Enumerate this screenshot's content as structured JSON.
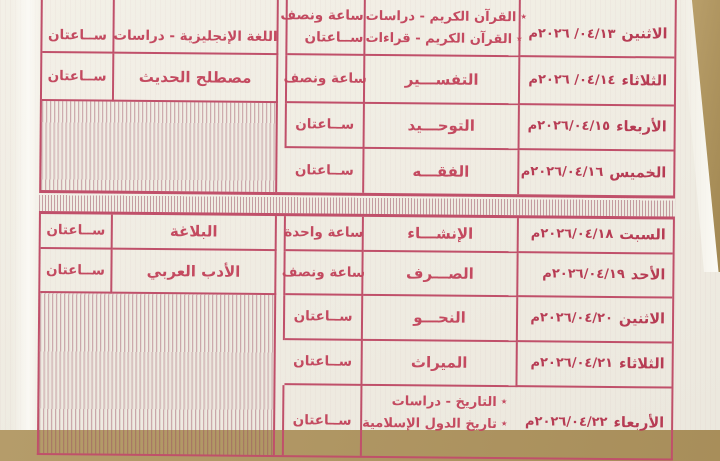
{
  "document_type_visible_content": "Arabic exam timetable (photographed printed form)",
  "colors": {
    "paper": "#f1ede3",
    "ink_red": "#c0455c",
    "grid_line": "#c0506a",
    "hatch_stripe": "#98485e",
    "background_tan": "#ae9460"
  },
  "table": {
    "bullet": "٭",
    "sections": [
      {
        "rows": [
          {
            "day": "الاثنين",
            "date_display": "م٢٠٢٦ /٠٤/١٣",
            "subject1_lines": [
              "القرآن الكريم - دراسات",
              "القرآن الكريم - قراءات"
            ],
            "duration1_lines": [
              "ساعة ونصف",
              "ســاعتان"
            ],
            "subject2": "اللغة الإنجليزية - دراسات",
            "duration2": "ســاعتان"
          },
          {
            "day": "الثلاثاء",
            "date_display": "م٢٠٢٦ /٠٤/١٤",
            "subject1": "التفســـير",
            "duration1": "ساعة ونصف",
            "subject2": "مصطلح الحديث",
            "duration2": "ســاعتان"
          },
          {
            "day": "الأربعاء",
            "date_display": "م٢٠٢٦/٠٤/١٥",
            "subject1": "التوحـــيد",
            "duration1": "ســاعتان",
            "subject2": "",
            "duration2": ""
          },
          {
            "day": "الخميس",
            "date_display": "م٢٠٢٦/٠٤/١٦",
            "subject1": "الفقـــه",
            "duration1": "ســاعتان",
            "subject2": "",
            "duration2": ""
          }
        ]
      },
      {
        "rows": [
          {
            "day": "السبت",
            "date_display": "م٢٠٢٦/٠٤/١٨",
            "subject1": "الإنشـــاء",
            "duration1": "ساعة واحدة",
            "subject2": "البلاغة",
            "duration2": "ســاعتان"
          },
          {
            "day": "الأحد",
            "date_display": "م٢٠٢٦/٠٤/١٩",
            "subject1": "الصـــرف",
            "duration1": "ساعة ونصف",
            "subject2": "الأدب العربي",
            "duration2": "ســاعتان"
          },
          {
            "day": "الاثنين",
            "date_display": "م٢٠٢٦/٠٤/٢٠",
            "subject1": "النحـــو",
            "duration1": "ســاعتان",
            "subject2": "",
            "duration2": ""
          },
          {
            "day": "الثلاثاء",
            "date_display": "م٢٠٢٦/٠٤/٢١",
            "subject1": "الميراث",
            "duration1": "ســاعتان",
            "subject2": "",
            "duration2": ""
          },
          {
            "day": "الأربعاء",
            "date_display": "م٢٠٢٦/٠٤/٢٢",
            "subject1_lines": [
              "التاريخ - دراسات",
              "تاريخ الدول الإسلامية"
            ],
            "duration1": "ســاعتان",
            "subject2": "",
            "duration2": ""
          }
        ]
      }
    ]
  }
}
